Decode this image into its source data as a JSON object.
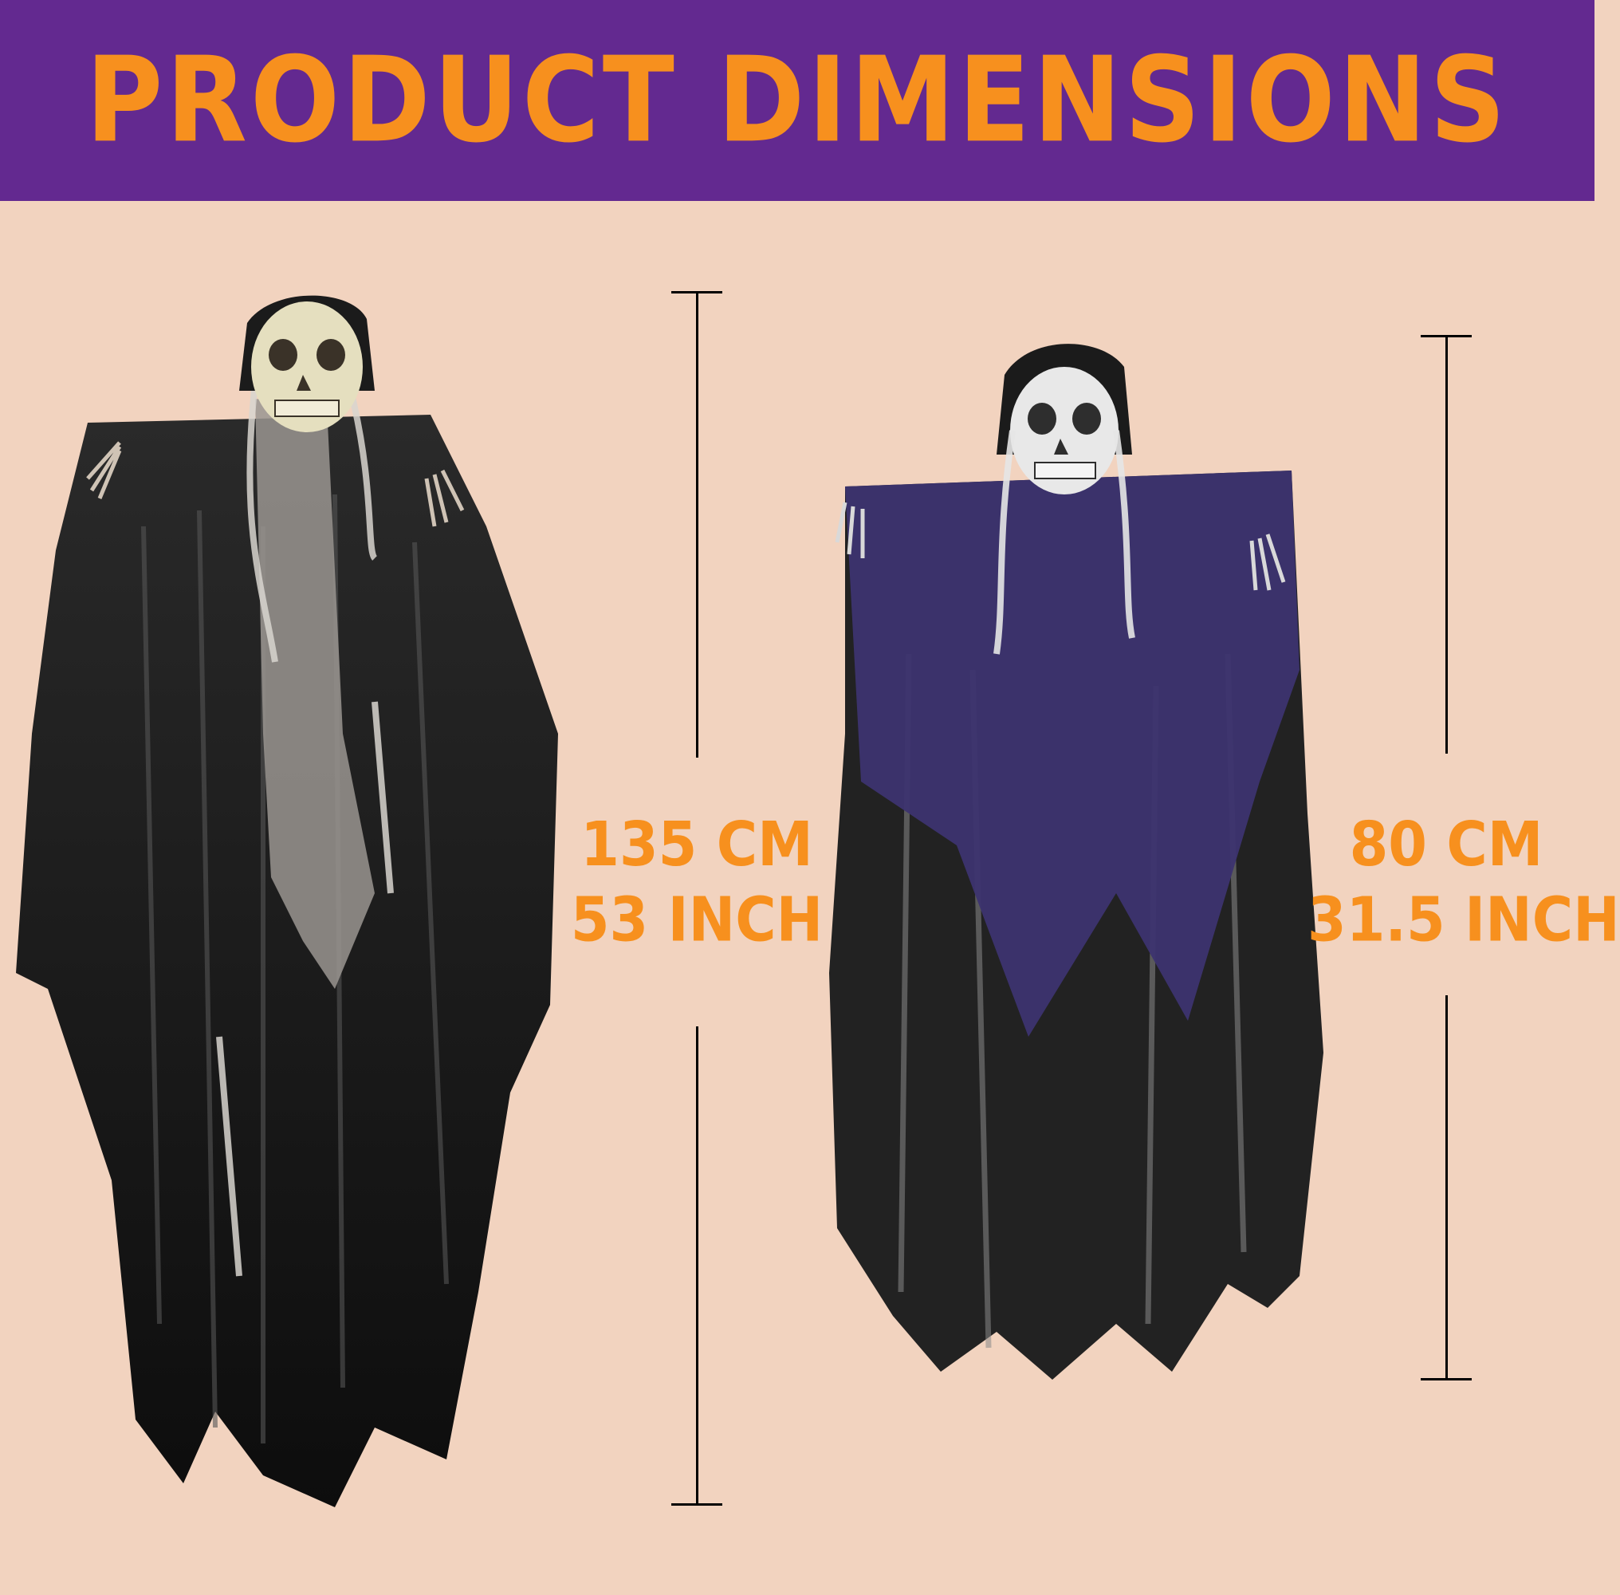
{
  "header": {
    "title": "PRODUCT DIMENSIONS"
  },
  "colors": {
    "banner_bg": "#632990",
    "accent": "#f7901e",
    "background": "#f2d3bf"
  },
  "products": [
    {
      "name": "large-grim-reaper",
      "robe_color": "black",
      "dimension_cm": "135 CM",
      "dimension_inch": "53 INCH"
    },
    {
      "name": "small-grim-reaper",
      "robe_color": "purple",
      "dimension_cm": "80 CM",
      "dimension_inch": "31.5 INCH"
    }
  ]
}
